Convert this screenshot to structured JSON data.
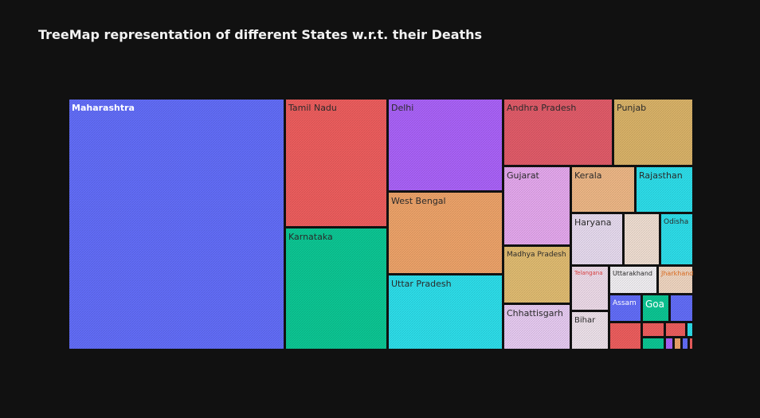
{
  "chart_data": {
    "type": "treemap",
    "title": "TreeMap representation of different States w.r.t. their Deaths",
    "hatched_tiles": true,
    "tiles": [
      {
        "label": "Maharashtra",
        "color": "#636efa"
      },
      {
        "label": "Tamil Nadu",
        "color": "#ef5e5e"
      },
      {
        "label": "Karnataka",
        "color": "#0cc895"
      },
      {
        "label": "Delhi",
        "color": "#ab63fa"
      },
      {
        "label": "West Bengal",
        "color": "#efa46a"
      },
      {
        "label": "Uttar Pradesh",
        "color": "#2ee0ec"
      },
      {
        "label": "Andhra Pradesh",
        "color": "#e35c6a"
      },
      {
        "label": "Punjab",
        "color": "#dbb469"
      },
      {
        "label": "Gujarat",
        "color": "#e6a9ef"
      },
      {
        "label": "Kerala",
        "color": "#efb887"
      },
      {
        "label": "Rajasthan",
        "color": "#2ee0ec"
      },
      {
        "label": "Madhya Pradesh",
        "color": "#e2bd72"
      },
      {
        "label": "Haryana",
        "color": "#e8dcf0"
      },
      {
        "label": "",
        "color": "#f1dfd3"
      },
      {
        "label": "Odisha",
        "color": "#2ee0ec"
      },
      {
        "label": "Telangana",
        "color": "#efdcea"
      },
      {
        "label": "Uttarakhand",
        "color": "#f3f0f4"
      },
      {
        "label": "Jharkhand",
        "color": "#f1d7c2"
      },
      {
        "label": "Chhattisgarh",
        "color": "#e8ccf3"
      },
      {
        "label": "Bihar",
        "color": "#efe3ec"
      },
      {
        "label": "Assam",
        "color": "#636efa"
      },
      {
        "label": "Goa",
        "color": "#0cc895"
      },
      {
        "label": "",
        "color": "#636efa"
      },
      {
        "label": "",
        "color": "#ef5e5e"
      },
      {
        "label": "",
        "color": "#ef5e5e"
      },
      {
        "label": "",
        "color": "#0cc895"
      },
      {
        "label": "",
        "color": "#ef5e5e"
      },
      {
        "label": "",
        "color": "#2ee0ec"
      },
      {
        "label": "",
        "color": "#ab63fa"
      },
      {
        "label": "",
        "color": "#efa46a"
      },
      {
        "label": "",
        "color": "#636efa"
      },
      {
        "label": "",
        "color": "#ef5e5e"
      }
    ]
  }
}
